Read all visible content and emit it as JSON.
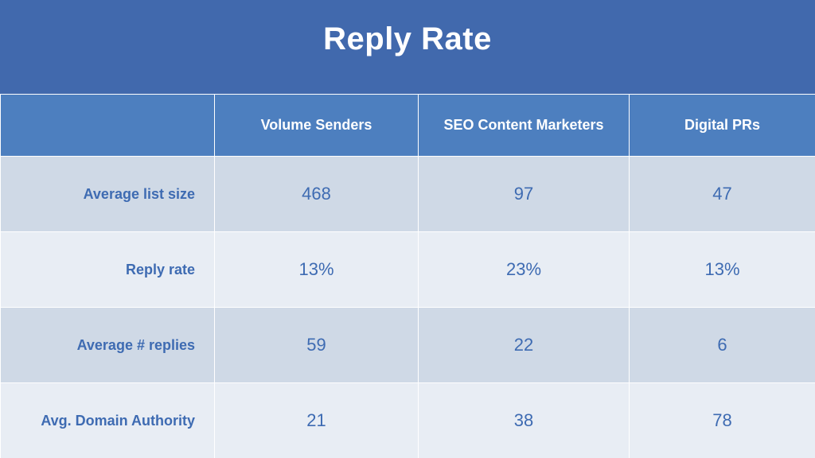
{
  "title": "Reply Rate",
  "chart_data": {
    "type": "table",
    "title": "Reply Rate",
    "columns": [
      "",
      "Volume Senders",
      "SEO Content Marketers",
      "Digital PRs"
    ],
    "rows": [
      {
        "label": "Average list size",
        "values": [
          "468",
          "97",
          "47"
        ]
      },
      {
        "label": "Reply rate",
        "values": [
          "13%",
          "23%",
          "13%"
        ]
      },
      {
        "label": "Average # replies",
        "values": [
          "59",
          "22",
          "6"
        ]
      },
      {
        "label": "Avg. Domain Authority",
        "values": [
          "21",
          "38",
          "78"
        ]
      }
    ]
  },
  "colors": {
    "title_bg": "#4169ad",
    "header_bg": "#4d7fbf",
    "row_dark": "#cfd9e6",
    "row_light": "#e8edf4",
    "text_blue": "#3e6bb2"
  }
}
